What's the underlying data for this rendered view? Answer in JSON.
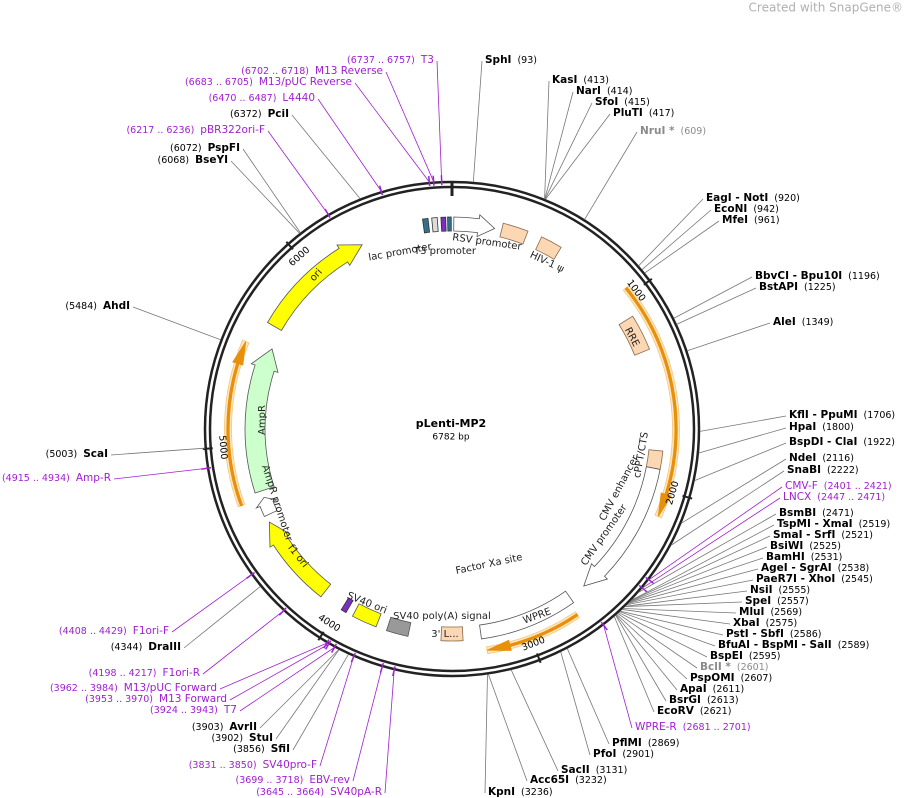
{
  "header": {
    "watermark": "Created with SnapGene®"
  },
  "map": {
    "name": "pLenti-MP2",
    "size": "6782 bp",
    "ticks": [
      1000,
      2000,
      3000,
      4000,
      5000,
      6000
    ],
    "features": [
      "lac promoter",
      "T3 promoter",
      "RSV promoter",
      "HIV-1 ψ",
      "RRE",
      "cPPT/CTS",
      "CMV enhancer",
      "CMV promoter",
      "Factor Xa site",
      "WPRE",
      "3' L...",
      "SV40 poly(A) signal",
      "SV40 ori",
      "f1 ori",
      "AmpR promoter",
      "AmpR",
      "ori"
    ],
    "sites": [
      {
        "name": "SphI",
        "position": "(93)",
        "color": "#000000"
      },
      {
        "name": "KasI",
        "position": "(413)",
        "color": "#000000"
      },
      {
        "name": "NarI",
        "position": "(414)",
        "color": "#000000"
      },
      {
        "name": "SfoI",
        "position": "(415)",
        "color": "#000000"
      },
      {
        "name": "PluTI",
        "position": "(417)",
        "color": "#000000"
      },
      {
        "name": "NruI *",
        "position": "(609)",
        "color": "#8a8a8a"
      },
      {
        "name": "EagI - NotI",
        "position": "(920)",
        "color": "#000000"
      },
      {
        "name": "EcoNI",
        "position": "(942)",
        "color": "#000000"
      },
      {
        "name": "MfeI",
        "position": "(961)",
        "color": "#000000"
      },
      {
        "name": "BbvCI - Bpu10I",
        "position": "(1196)",
        "color": "#000000"
      },
      {
        "name": "BstAPI",
        "position": "(1225)",
        "color": "#000000"
      },
      {
        "name": "AleI",
        "position": "(1349)",
        "color": "#000000"
      },
      {
        "name": "KflI - PpuMI",
        "position": "(1706)",
        "color": "#000000"
      },
      {
        "name": "HpaI",
        "position": "(1800)",
        "color": "#000000"
      },
      {
        "name": "BspDI - ClaI",
        "position": "(1922)",
        "color": "#000000"
      },
      {
        "name": "NdeI",
        "position": "(2116)",
        "color": "#000000"
      },
      {
        "name": "SnaBI",
        "position": "(2222)",
        "color": "#000000"
      },
      {
        "name": "CMV-F",
        "position": "(2401 .. 2421)",
        "color": "#a020d0"
      },
      {
        "name": "LNCX",
        "position": "(2447 .. 2471)",
        "color": "#a020d0"
      },
      {
        "name": "BsmBI",
        "position": "(2471)",
        "color": "#000000"
      },
      {
        "name": "TspMI - XmaI",
        "position": "(2519)",
        "color": "#000000"
      },
      {
        "name": "SmaI - SrfI",
        "position": "(2521)",
        "color": "#000000"
      },
      {
        "name": "BsiWI",
        "position": "(2525)",
        "color": "#000000"
      },
      {
        "name": "BamHI",
        "position": "(2531)",
        "color": "#000000"
      },
      {
        "name": "AgeI - SgrAI",
        "position": "(2538)",
        "color": "#000000"
      },
      {
        "name": "PaeR7I - XhoI",
        "position": "(2545)",
        "color": "#000000"
      },
      {
        "name": "NsiI",
        "position": "(2555)",
        "color": "#000000"
      },
      {
        "name": "SpeI",
        "position": "(2557)",
        "color": "#000000"
      },
      {
        "name": "MluI",
        "position": "(2569)",
        "color": "#000000"
      },
      {
        "name": "XbaI",
        "position": "(2575)",
        "color": "#000000"
      },
      {
        "name": "PstI - SbfI",
        "position": "(2586)",
        "color": "#000000"
      },
      {
        "name": "BfuAI - BspMI - SalI",
        "position": "(2589)",
        "color": "#000000"
      },
      {
        "name": "BspEI",
        "position": "(2595)",
        "color": "#000000"
      },
      {
        "name": "BclI *",
        "position": "(2601)",
        "color": "#8a8a8a"
      },
      {
        "name": "PspOMI",
        "position": "(2607)",
        "color": "#000000"
      },
      {
        "name": "ApaI",
        "position": "(2611)",
        "color": "#000000"
      },
      {
        "name": "BsrGI",
        "position": "(2613)",
        "color": "#000000"
      },
      {
        "name": "EcoRV",
        "position": "(2621)",
        "color": "#000000"
      },
      {
        "name": "WPRE-R",
        "position": "(2681 .. 2701)",
        "color": "#a020d0"
      },
      {
        "name": "PflMI",
        "position": "(2869)",
        "color": "#000000"
      },
      {
        "name": "PfoI",
        "position": "(2901)",
        "color": "#000000"
      },
      {
        "name": "SacII",
        "position": "(3131)",
        "color": "#000000"
      },
      {
        "name": "Acc65I",
        "position": "(3232)",
        "color": "#000000"
      },
      {
        "name": "KpnI",
        "position": "(3236)",
        "color": "#000000"
      },
      {
        "name": "T3",
        "position": "(6737 .. 6757)",
        "color": "#a020d0"
      },
      {
        "name": "M13 Reverse",
        "position": "(6702 .. 6718)",
        "color": "#a020d0"
      },
      {
        "name": "M13/pUC Reverse",
        "position": "(6683 .. 6705)",
        "color": "#a020d0"
      },
      {
        "name": "L4440",
        "position": "(6470 .. 6487)",
        "color": "#a020d0"
      },
      {
        "name": "PciI",
        "position": "(6372)",
        "color": "#000000"
      },
      {
        "name": "pBR322ori-F",
        "position": "(6217 .. 6236)",
        "color": "#a020d0"
      },
      {
        "name": "PspFI",
        "position": "(6072)",
        "color": "#000000"
      },
      {
        "name": "BseYI",
        "position": "(6068)",
        "color": "#000000"
      },
      {
        "name": "AhdI",
        "position": "(5484)",
        "color": "#000000"
      },
      {
        "name": "ScaI",
        "position": "(5003)",
        "color": "#000000"
      },
      {
        "name": "Amp-R",
        "position": "(4915 .. 4934)",
        "color": "#a020d0"
      },
      {
        "name": "F1ori-F",
        "position": "(4408 .. 4429)",
        "color": "#a020d0"
      },
      {
        "name": "DraIII",
        "position": "(4344)",
        "color": "#000000"
      },
      {
        "name": "F1ori-R",
        "position": "(4198 .. 4217)",
        "color": "#a020d0"
      },
      {
        "name": "M13/pUC Forward",
        "position": "(3962 .. 3984)",
        "color": "#a020d0"
      },
      {
        "name": "M13 Forward",
        "position": "(3953 .. 3970)",
        "color": "#a020d0"
      },
      {
        "name": "T7",
        "position": "(3924 .. 3943)",
        "color": "#a020d0"
      },
      {
        "name": "AvrII",
        "position": "(3903)",
        "color": "#000000"
      },
      {
        "name": "StuI",
        "position": "(3902)",
        "color": "#000000"
      },
      {
        "name": "SfiI",
        "position": "(3856)",
        "color": "#000000"
      },
      {
        "name": "SV40pro-F",
        "position": "(3831 .. 3850)",
        "color": "#a020d0"
      },
      {
        "name": "EBV-rev",
        "position": "(3699 .. 3718)",
        "color": "#a020d0"
      },
      {
        "name": "SV40pA-R",
        "position": "(3645 .. 3664)",
        "color": "#a020d0"
      }
    ]
  }
}
